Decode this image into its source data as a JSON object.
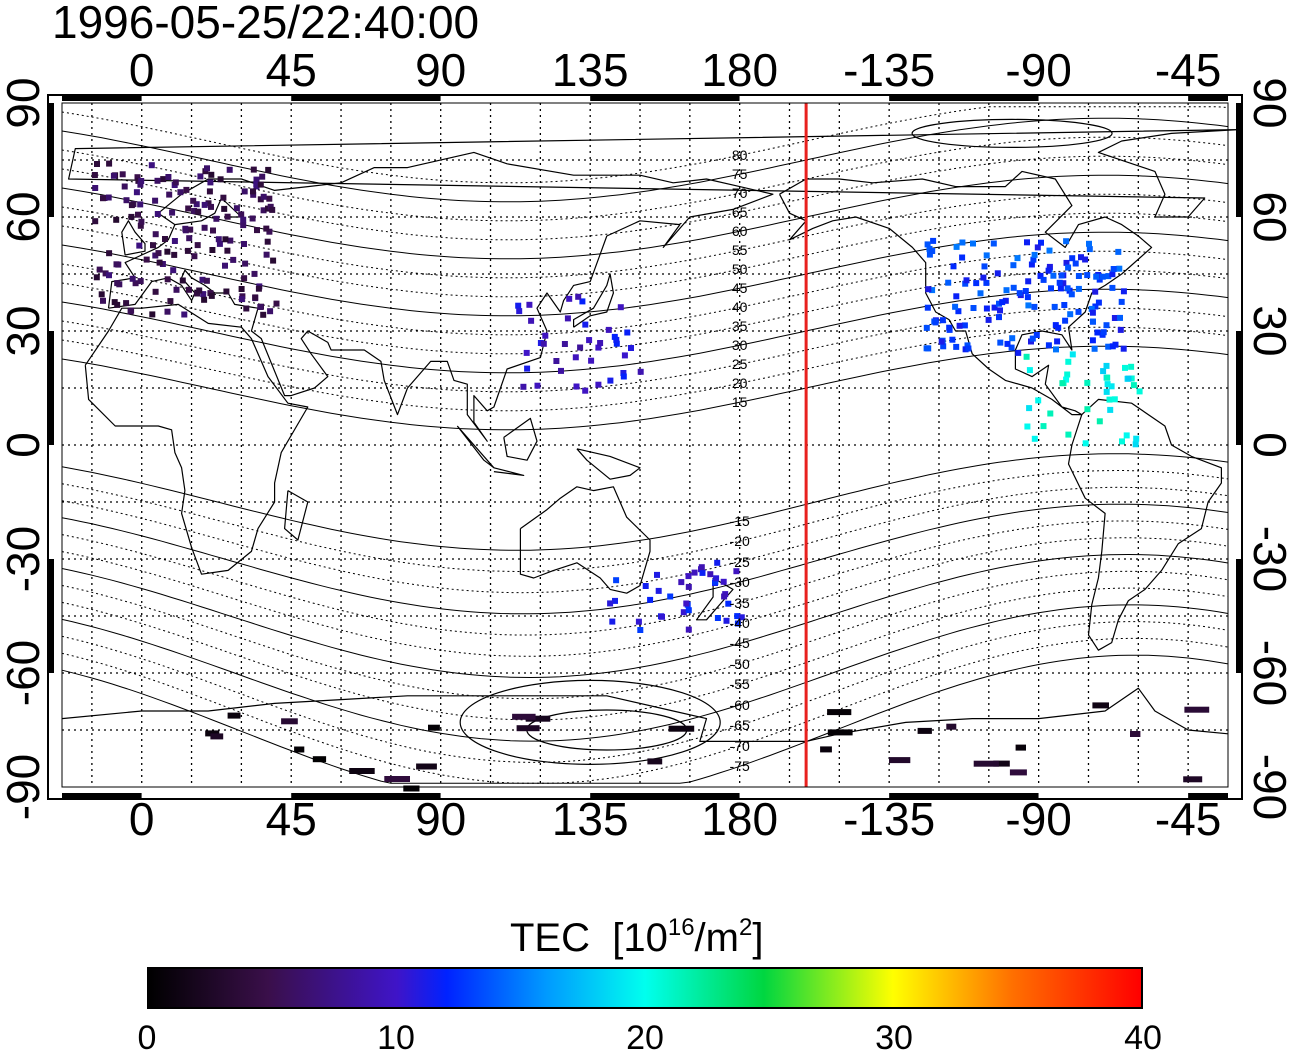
{
  "title": "1996-05-25/22:40:00",
  "lon_ticks": [
    "0",
    "45",
    "90",
    "135",
    "180",
    "-135",
    "-90",
    "-45"
  ],
  "lat_ticks": [
    "90",
    "60",
    "30",
    "0",
    "-30",
    "-60",
    "-90"
  ],
  "mlat_labels": [
    "80",
    "75",
    "70",
    "65",
    "60",
    "55",
    "50",
    "45",
    "40",
    "35",
    "30",
    "25",
    "20",
    "15",
    "-15",
    "-20",
    "-25",
    "-30",
    "-35",
    "-40",
    "-45",
    "-50",
    "-55",
    "-60",
    "-65",
    "-70",
    "-75"
  ],
  "colorbar": {
    "title": "TEC",
    "units_prefix": "[10",
    "units_exp": "16",
    "units_mid": "/m",
    "units_exp2": "2",
    "units_suffix": "]",
    "ticks": [
      "0",
      "10",
      "20",
      "30",
      "40"
    ],
    "range": [
      0,
      40
    ]
  },
  "terminator_color": "#e8201e",
  "map": {
    "lon_range": [
      -24,
      327
    ],
    "lat_range": [
      -90,
      90
    ],
    "grid": true,
    "terminator_lon": 200,
    "tec_clusters": [
      {
        "region": "Europe",
        "lon_min": -15,
        "lon_max": 40,
        "lat_min": 35,
        "lat_max": 75,
        "tec": 5
      },
      {
        "region": "North America",
        "lon_min": 235,
        "lon_max": 295,
        "lat_min": 25,
        "lat_max": 55,
        "tec": 13
      },
      {
        "region": "Caribbean",
        "lon_min": 265,
        "lon_max": 300,
        "lat_min": 0,
        "lat_max": 25,
        "tec": 20
      },
      {
        "region": "East Asia",
        "lon_min": 110,
        "lon_max": 150,
        "lat_min": 15,
        "lat_max": 40,
        "tec": 10
      },
      {
        "region": "Australia",
        "lon_min": 140,
        "lon_max": 180,
        "lat_min": -48,
        "lat_max": -30,
        "tec": 11
      },
      {
        "region": "Antarctica",
        "lon_min": 10,
        "lon_max": 320,
        "lat_min": -90,
        "lat_max": -65,
        "tec": 2
      }
    ]
  }
}
